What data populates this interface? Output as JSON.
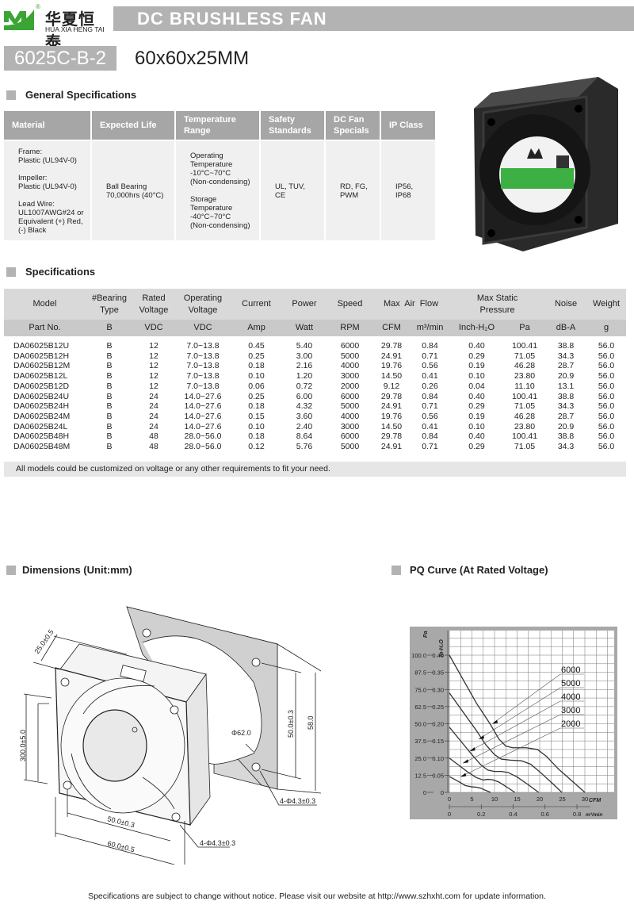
{
  "brand": {
    "name_cn": "华夏恒泰",
    "name_en": "HUA XIA HENG TAI",
    "registered": "®",
    "logo_color": "#3aa535"
  },
  "header": {
    "title": "DC BRUSHLESS FAN",
    "model": "6025C-B-2",
    "size": "60x60x25MM"
  },
  "general": {
    "heading": "General Specifications",
    "columns": [
      "Material",
      "Expected Life",
      "Temperature Range",
      "Safety Standards",
      "DC Fan Specials",
      "IP Class"
    ],
    "values": [
      "Frame:\nPlastic (UL94V-0)\n\nImpeller:\nPlastic (UL94V-0)\n\nLead Wire:\nUL1007AWG#24 or\nEquivalent (+) Red,\n(-) Black",
      "Ball Bearing\n70,000hrs (40°C)",
      "Operating\nTemperature\n -10°C~70°C\n (Non-condensing)\n\nStorage\nTemperature\n -40°C~70°C\n(Non-condensing)",
      "UL, TUV,\nCE",
      "RD, FG,\nPWM",
      "IP56, IP68"
    ]
  },
  "specs": {
    "heading": "Specifications",
    "header1": {
      "model": "Model",
      "bearing": "#Bearing Type",
      "rated": "Rated Voltage",
      "operating": "Operating Voltage",
      "current": "Current",
      "power": "Power",
      "speed": "Speed",
      "airflow": "Max  Air  Flow",
      "pressure": "Max Static  Pressure",
      "noise": "Noise",
      "weight": "Weight"
    },
    "units": [
      "Part No.",
      "B",
      "VDC",
      "VDC",
      "Amp",
      "Watt",
      "RPM",
      "CFM",
      "m³/min",
      "Inch-H₂O",
      "Pa",
      "dB-A",
      "g"
    ],
    "rows": [
      [
        "DA06025B12U",
        "B",
        "12",
        "7.0~13.8",
        "0.45",
        "5.40",
        "6000",
        "29.78",
        "0.84",
        "0.40",
        "100.41",
        "38.8",
        "56.0"
      ],
      [
        "DA06025B12H",
        "B",
        "12",
        "7.0~13.8",
        "0.25",
        "3.00",
        "5000",
        "24.91",
        "0.71",
        "0.29",
        "71.05",
        "34.3",
        "56.0"
      ],
      [
        "DA06025B12M",
        "B",
        "12",
        "7.0~13.8",
        "0.18",
        "2.16",
        "4000",
        "19.76",
        "0.56",
        "0.19",
        "46.28",
        "28.7",
        "56.0"
      ],
      [
        "DA06025B12L",
        "B",
        "12",
        "7.0~13.8",
        "0.10",
        "1.20",
        "3000",
        "14.50",
        "0.41",
        "0.10",
        "23.80",
        "20.9",
        "56.0"
      ],
      [
        "DA06025B12D",
        "B",
        "12",
        "7.0~13.8",
        "0.06",
        "0.72",
        "2000",
        "9.12",
        "0.26",
        "0.04",
        "11.10",
        "13.1",
        "56.0"
      ],
      [
        "DA06025B24U",
        "B",
        "24",
        "14.0~27.6",
        "0.25",
        "6.00",
        "6000",
        "29.78",
        "0.84",
        "0.40",
        "100.41",
        "38.8",
        "56.0"
      ],
      [
        "DA06025B24H",
        "B",
        "24",
        "14.0~27.6",
        "0.18",
        "4.32",
        "5000",
        "24.91",
        "0.71",
        "0.29",
        "71.05",
        "34.3",
        "56.0"
      ],
      [
        "DA06025B24M",
        "B",
        "24",
        "14.0~27.6",
        "0.15",
        "3.60",
        "4000",
        "19.76",
        "0.56",
        "0.19",
        "46.28",
        "28.7",
        "56.0"
      ],
      [
        "DA06025B24L",
        "B",
        "24",
        "14.0~27.6",
        "0.10",
        "2.40",
        "3000",
        "14.50",
        "0.41",
        "0.10",
        "23.80",
        "20.9",
        "56.0"
      ],
      [
        "DA06025B48H",
        "B",
        "48",
        "28.0~56.0",
        "0.18",
        "8.64",
        "6000",
        "29.78",
        "0.84",
        "0.40",
        "100.41",
        "38.8",
        "56.0"
      ],
      [
        "DA06025B48M",
        "B",
        "48",
        "28.0~56.0",
        "0.12",
        "5.76",
        "5000",
        "24.91",
        "0.71",
        "0.29",
        "71.05",
        "34.3",
        "56.0"
      ]
    ],
    "note": "All models could be customized on voltage or any other requirements to fit your need."
  },
  "dimensions": {
    "heading": "Dimensions (Unit:mm)",
    "labels": {
      "depth": "25.0±0.5",
      "lead": "300.0±5.0",
      "hole_pitch_h": "50.0±0.3",
      "width": "60.0±0.5",
      "hole_bottom": "4-Φ4.3±0.3",
      "hole_pitch_v": "50.0±0.3",
      "height": "58.0",
      "diameter": "Φ62.0",
      "hole_right": "4-Φ4.3±0.3"
    }
  },
  "pq": {
    "heading": "PQ Curve (At Rated Voltage)"
  },
  "chart_data": {
    "type": "line",
    "title": "PQ Curve (At Rated Voltage)",
    "xlabel": "CFM",
    "xlabel2": "m³/min",
    "ylabel": "In-H₂O",
    "ylabel2": "Pa",
    "xlim": [
      0,
      30
    ],
    "ylim": [
      0,
      0.4
    ],
    "x_ticks": [
      0,
      5,
      10,
      15,
      20,
      25,
      30
    ],
    "x2_ticks": [
      "0",
      "0.2",
      "0.4",
      "0.6",
      "0.8"
    ],
    "y_ticks": [
      "0",
      "0.05",
      "0.10",
      "0.15",
      "0.20",
      "0.25",
      "0.30",
      "0.35",
      "0.40"
    ],
    "y2_ticks": [
      "0",
      "12.5",
      "25.0",
      "37.5",
      "50.0",
      "62.5",
      "75.0",
      "87.5",
      "100.0"
    ],
    "grid": true,
    "series": [
      {
        "name": "6000",
        "x": [
          0,
          3,
          6,
          9,
          11,
          12.5,
          14,
          17,
          19.5,
          21.5,
          24,
          27,
          30
        ],
        "y": [
          0.4,
          0.33,
          0.26,
          0.2,
          0.155,
          0.135,
          0.13,
          0.13,
          0.125,
          0.105,
          0.07,
          0.035,
          0
        ]
      },
      {
        "name": "5000",
        "x": [
          0,
          3,
          6,
          8,
          10,
          11.5,
          13.5,
          16,
          18,
          20,
          22.5,
          24.91
        ],
        "y": [
          0.29,
          0.235,
          0.18,
          0.14,
          0.11,
          0.097,
          0.094,
          0.092,
          0.082,
          0.06,
          0.03,
          0
        ]
      },
      {
        "name": "4000",
        "x": [
          0,
          2.5,
          5,
          7,
          8.5,
          10,
          11.5,
          13,
          15,
          17.5,
          19.76
        ],
        "y": [
          0.19,
          0.15,
          0.11,
          0.08,
          0.065,
          0.061,
          0.061,
          0.058,
          0.045,
          0.022,
          0
        ]
      },
      {
        "name": "3000",
        "x": [
          0,
          2,
          4,
          6,
          7.5,
          8.5,
          9.5,
          11,
          13,
          14.5
        ],
        "y": [
          0.1,
          0.08,
          0.06,
          0.043,
          0.036,
          0.038,
          0.037,
          0.03,
          0.013,
          0
        ]
      },
      {
        "name": "2000",
        "x": [
          0,
          2,
          3.5,
          5,
          6,
          7,
          8,
          9.12
        ],
        "y": [
          0.046,
          0.032,
          0.02,
          0.016,
          0.015,
          0.012,
          0.006,
          0
        ]
      }
    ]
  },
  "footer": "Specifications are subject to change without notice. Please visit our website at http://www.szhxht.com for update information."
}
